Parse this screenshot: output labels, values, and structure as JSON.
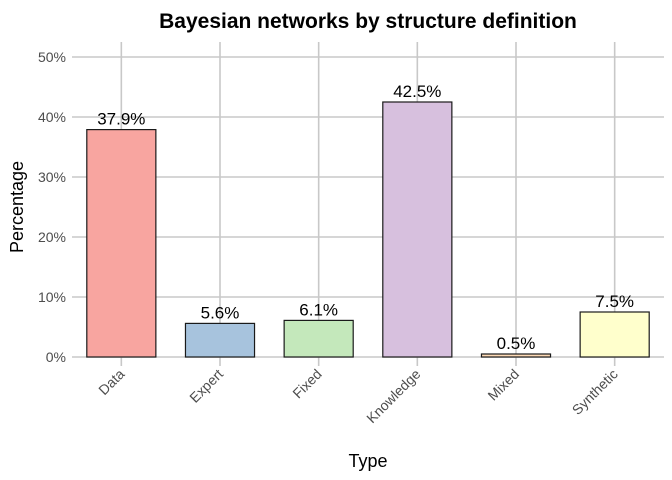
{
  "chart_data": {
    "type": "bar",
    "title": "Bayesian networks by structure definition",
    "xlabel": "Type",
    "ylabel": "Percentage",
    "categories": [
      "Data",
      "Expert",
      "Fixed",
      "Knowledge",
      "Mixed",
      "Synthetic"
    ],
    "values": [
      37.9,
      5.6,
      6.1,
      42.5,
      0.5,
      7.5
    ],
    "data_labels": [
      "37.9%",
      "5.6%",
      "6.1%",
      "42.5%",
      "0.5%",
      "7.5%"
    ],
    "colors": [
      "#F8A5A0",
      "#A7C3DD",
      "#C4E8BB",
      "#D7C0DE",
      "#FDD9B5",
      "#FFFFCC"
    ],
    "ylim": [
      0,
      50
    ],
    "yticks": [
      0,
      10,
      20,
      30,
      40,
      50
    ],
    "ytick_labels": [
      "0%",
      "10%",
      "20%",
      "30%",
      "40%",
      "50%"
    ],
    "grid": true,
    "legend": "none"
  }
}
